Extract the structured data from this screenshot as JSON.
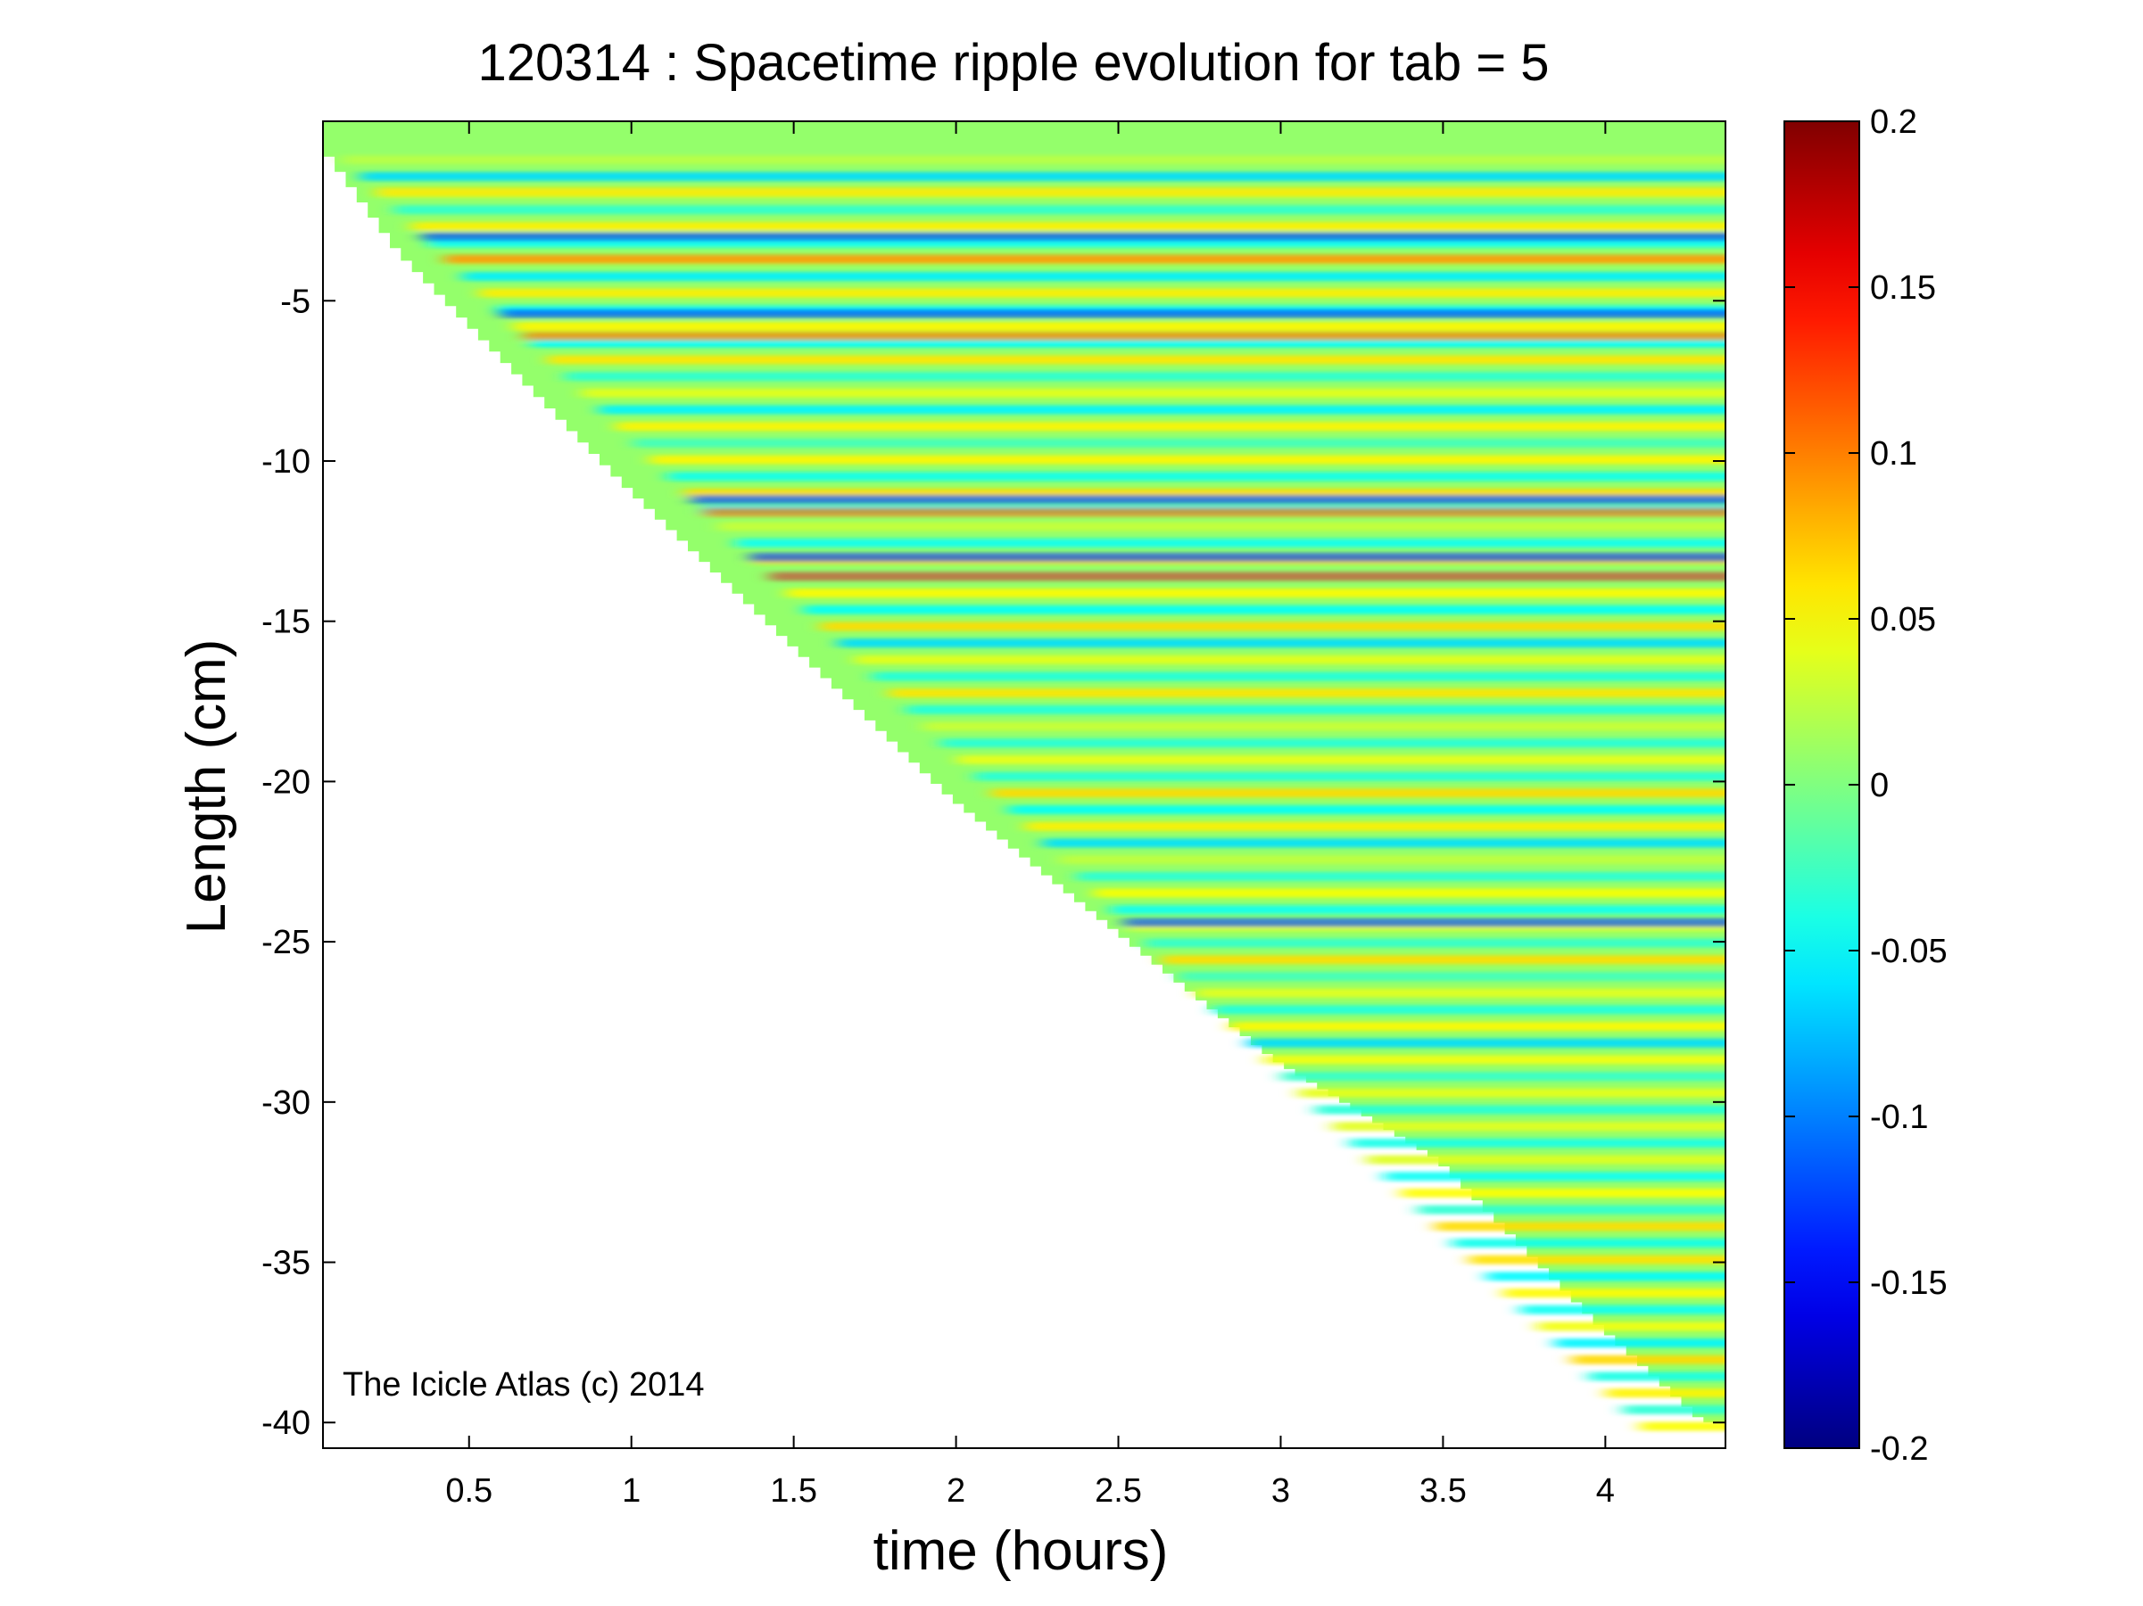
{
  "chart_data": {
    "type": "heatmap",
    "title": "120314 : Spacetime ripple evolution for tab = 5",
    "xlabel": "time (hours)",
    "ylabel": "Length (cm)",
    "xlim": [
      0.05,
      4.37
    ],
    "ylim": [
      -40.8,
      0.6
    ],
    "x_ticks": [
      0.5,
      1,
      1.5,
      2,
      2.5,
      3,
      3.5,
      4
    ],
    "x_tick_labels": [
      "0.5",
      "1",
      "1.5",
      "2",
      "2.5",
      "3",
      "3.5",
      "4"
    ],
    "y_ticks": [
      -5,
      -10,
      -15,
      -20,
      -25,
      -30,
      -35,
      -40
    ],
    "y_tick_labels": [
      "-5",
      "-10",
      "-15",
      "-20",
      "-25",
      "-30",
      "-35",
      "-40"
    ],
    "grid": false,
    "colormap": "jet",
    "clim": [
      -0.2,
      0.2
    ],
    "colorbar_ticks": [
      0.2,
      0.15,
      0.1,
      0.05,
      0,
      -0.05,
      -0.1,
      -0.15,
      -0.2
    ],
    "colorbar_tick_labels": [
      "0.2",
      "0.15",
      "0.1",
      "0.05",
      "0",
      "-0.05",
      "-0.1",
      "-0.15",
      "-0.2"
    ],
    "data_boundary": {
      "description_of_values": "icicle tip length (cm) vs time (hours); data exists only above this front",
      "time": [
        0.05,
        0.3,
        1.0,
        2.0,
        3.0,
        3.5,
        4.0,
        4.32
      ],
      "tip_length": [
        0.0,
        -3.5,
        -10.8,
        -20.5,
        -28.7,
        -31.8,
        -37.0,
        -40.0
      ]
    },
    "ripple_bands": {
      "description_of_values": "approximate centers (cm) and peak amplitudes of prominent bands",
      "length": [
        -1.6,
        -3.0,
        -3.7,
        -5.4,
        -6.1,
        -11.2,
        -11.6,
        -13.0,
        -13.6,
        -24.4
      ],
      "amplitude": [
        0.06,
        -0.12,
        0.1,
        -0.12,
        0.1,
        -0.12,
        0.1,
        -0.12,
        0.12,
        -0.12
      ]
    },
    "annotation": "The Icicle Atlas (c) 2014"
  }
}
